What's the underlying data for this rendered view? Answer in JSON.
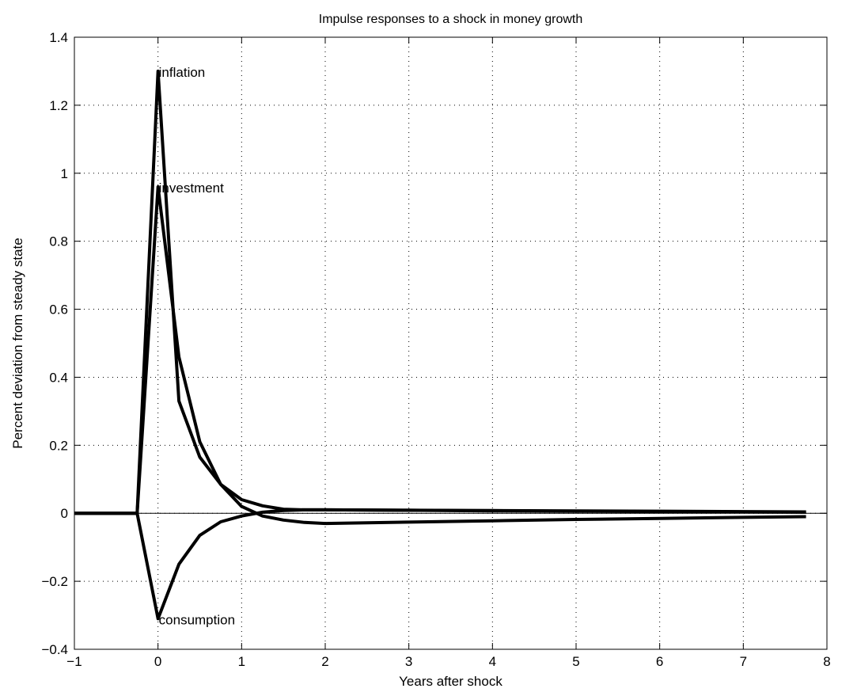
{
  "chart_data": {
    "type": "line",
    "title": "Impulse responses to a shock in money growth",
    "xlabel": "Years after shock",
    "ylabel": "Percent deviation from steady state",
    "xlim": [
      -1,
      8
    ],
    "ylim": [
      -0.4,
      1.4
    ],
    "grid": true,
    "x_ticks": [
      "-1",
      "0",
      "1",
      "2",
      "3",
      "4",
      "5",
      "6",
      "7",
      "8"
    ],
    "y_ticks": [
      "-0.4",
      "-0.2",
      "0",
      "0.2",
      "0.4",
      "0.6",
      "0.8",
      "1",
      "1.2",
      "1.4"
    ],
    "series": [
      {
        "name": "inflation",
        "x": [
          -1,
          -0.75,
          -0.5,
          -0.25,
          0,
          0.25,
          0.5,
          0.75,
          1,
          1.25,
          1.5,
          1.75,
          2,
          3,
          4,
          5,
          6,
          7,
          7.75
        ],
        "y": [
          0,
          0,
          0,
          0,
          1.3,
          0.33,
          0.165,
          0.085,
          0.04,
          0.022,
          0.012,
          0.01,
          0.01,
          0.009,
          0.008,
          0.007,
          0.006,
          0.005,
          0.004
        ]
      },
      {
        "name": "investment",
        "x": [
          -1,
          -0.75,
          -0.5,
          -0.25,
          0,
          0.25,
          0.5,
          0.75,
          1,
          1.25,
          1.5,
          1.75,
          2,
          3,
          4,
          5,
          6,
          7,
          7.75
        ],
        "y": [
          0,
          0,
          0,
          0,
          0.96,
          0.46,
          0.21,
          0.085,
          0.02,
          -0.008,
          -0.02,
          -0.027,
          -0.03,
          -0.026,
          -0.022,
          -0.018,
          -0.015,
          -0.012,
          -0.01
        ]
      },
      {
        "name": "consumption",
        "x": [
          -1,
          -0.75,
          -0.5,
          -0.25,
          0,
          0.25,
          0.5,
          0.75,
          1,
          1.25,
          1.5,
          1.75,
          2,
          3,
          4,
          5,
          6,
          7,
          7.75
        ],
        "y": [
          0,
          0,
          0,
          0,
          -0.31,
          -0.15,
          -0.065,
          -0.025,
          -0.008,
          0.003,
          0.008,
          0.01,
          0.01,
          0.009,
          0.007,
          0.006,
          0.005,
          0.004,
          0.003
        ]
      }
    ],
    "annotations": [
      {
        "text": "inflation",
        "x": 0,
        "y": 1.3
      },
      {
        "text": "investment",
        "x": 0,
        "y": 0.96
      },
      {
        "text": "consumption",
        "x": 0,
        "y": -0.31
      }
    ]
  }
}
